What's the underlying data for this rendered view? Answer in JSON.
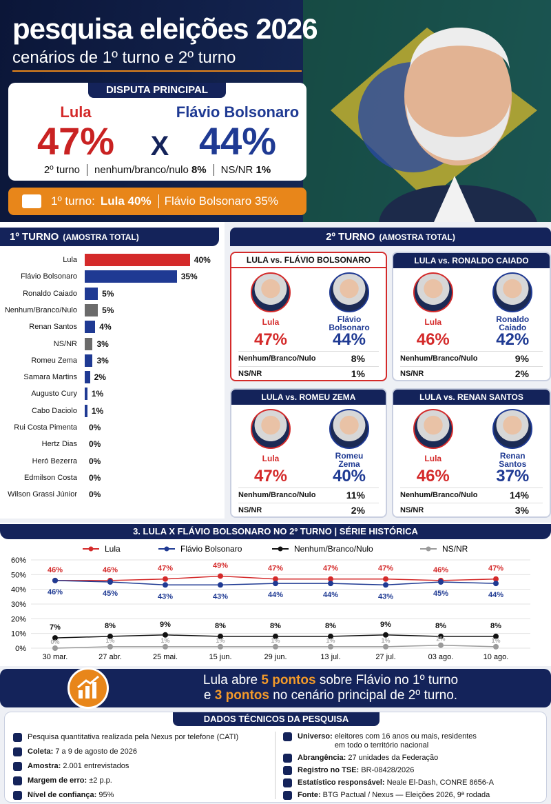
{
  "header": {
    "title": "pesquisa eleições 2026",
    "subtitle": "cenários de 1º turno e 2º turno"
  },
  "main": {
    "label": "DISPUTA PRINCIPAL",
    "left": {
      "name": "Lula",
      "value": "47%"
    },
    "versus": "X",
    "right": {
      "name": "Flávio Bolsonaro",
      "value": "44%"
    },
    "notes": [
      "2º turno",
      {
        "label": "nenhum/branco/nulo",
        "value": "8%"
      },
      {
        "label": "NS/NR",
        "value": "1%"
      }
    ]
  },
  "first_round_banner": {
    "label": "1º turno:",
    "items": [
      "Lula 40%",
      "Flávio Bolsonaro 35%"
    ]
  },
  "chart_data": [
    {
      "type": "bar",
      "orientation": "horizontal",
      "title": "1º TURNO",
      "subtitle": "(AMOSTRA TOTAL)",
      "categories": [
        "Lula",
        "Flávio Bolsonaro",
        "Ronaldo Caiado",
        "Nenhum/Branco/Nulo",
        "Renan Santos",
        "NS/NR",
        "Romeu Zema",
        "Samara Martins",
        "Augusto Cury",
        "Cabo Daciolo",
        "Rui Costa Pimenta",
        "Hertz Dias",
        "Heró Bezerra",
        "Edmilson Costa",
        "Wilson Grassi Júnior"
      ],
      "values": [
        40,
        35,
        5,
        5,
        4,
        3,
        3,
        2,
        1,
        1,
        0,
        0,
        0,
        0,
        0
      ],
      "value_labels": [
        "40%",
        "35%",
        "5%",
        "5%",
        "4%",
        "3%",
        "3%",
        "2%",
        "1%",
        "1%",
        "0%",
        "0%",
        "0%",
        "0%",
        "0%"
      ],
      "colors": [
        "#d42a2a",
        "#1f3a93",
        "#1f3a93",
        "#6b6b6b",
        "#1f3a93",
        "#6b6b6b",
        "#1f3a93",
        "#1f3a93",
        "#1f3a93",
        "#1f3a93",
        "#1f3a93",
        "#1f3a93",
        "#1f3a93",
        "#1f3a93",
        "#1f3a93"
      ]
    },
    {
      "type": "line",
      "title": "3. LULA X FLÁVIO BOLSONARO NO 2º TURNO | SÉRIE HISTÓRICA",
      "categories": [
        "30 mar.",
        "27 abr.",
        "25 mai.",
        "15 jun.",
        "29 jun.",
        "13 jul.",
        "27 jul.",
        "03 ago.",
        "10 ago."
      ],
      "series": [
        {
          "name": "Lula",
          "color": "#d42a2a",
          "values": [
            46,
            46,
            47,
            49,
            47,
            47,
            47,
            46,
            47
          ],
          "value_labels": [
            "46%",
            "46%",
            "47%",
            "49%",
            "47%",
            "47%",
            "47%",
            "46%",
            "47%"
          ]
        },
        {
          "name": "Flávio Bolsonaro",
          "color": "#1f3a93",
          "values": [
            46,
            45,
            43,
            43,
            44,
            44,
            43,
            45,
            44
          ],
          "value_labels": [
            "46%",
            "45%",
            "43%",
            "43%",
            "44%",
            "44%",
            "43%",
            "45%",
            "44%"
          ]
        },
        {
          "name": "Nenhum/Branco/Nulo",
          "color": "#111111",
          "values": [
            7,
            8,
            9,
            8,
            8,
            8,
            9,
            8,
            8
          ],
          "value_labels": [
            "7%",
            "8%",
            "9%",
            "8%",
            "8%",
            "8%",
            "9%",
            "8%",
            "8%"
          ]
        },
        {
          "name": "NS/NR",
          "color": "#9a9a9a",
          "values": [
            0,
            1,
            1,
            1,
            1,
            1,
            1,
            2,
            1
          ],
          "value_labels": [
            "0%",
            "1%",
            "1%",
            "1%",
            "1%",
            "1%",
            "1%",
            "2%",
            "1%"
          ]
        }
      ],
      "ylim": [
        0,
        60
      ],
      "yticks": [
        {
          "value": 0,
          "label": "0%"
        },
        {
          "value": 10,
          "label": "10%"
        },
        {
          "value": 20,
          "label": "20%"
        },
        {
          "value": 30,
          "label": "30%"
        },
        {
          "value": 40,
          "label": "40%"
        },
        {
          "value": 50,
          "label": "50%"
        },
        {
          "value": 60,
          "label": "60%"
        }
      ],
      "grid": true
    }
  ],
  "second_round": {
    "title": "2º TURNO",
    "subtitle": "(AMOSTRA TOTAL)",
    "cards": [
      {
        "title": "LULA vs. FLÁVIO BOLSONARO",
        "left": {
          "name": "Lula",
          "value": "47%"
        },
        "right": {
          "name": "Flávio Bolsonaro",
          "value": "44%"
        },
        "rows": [
          {
            "label": "Nenhum/Branco/Nulo",
            "value": "8%"
          },
          {
            "label": "NS/NR",
            "value": "1%"
          }
        ]
      },
      {
        "title": "LULA vs. RONALDO CAIADO",
        "left": {
          "name": "Lula",
          "value": "46%"
        },
        "right": {
          "name": "Ronaldo Caiado",
          "value": "42%"
        },
        "rows": [
          {
            "label": "Nenhum/Branco/Nulo",
            "value": "9%"
          },
          {
            "label": "NS/NR",
            "value": "2%"
          }
        ]
      },
      {
        "title": "LULA vs. ROMEU ZEMA",
        "left": {
          "name": "Lula",
          "value": "47%"
        },
        "right": {
          "name": "Romeu Zema",
          "value": "40%"
        },
        "rows": [
          {
            "label": "Nenhum/Branco/Nulo",
            "value": "11%"
          },
          {
            "label": "NS/NR",
            "value": "2%"
          }
        ]
      },
      {
        "title": "LULA vs. RENAN SANTOS",
        "left": {
          "name": "Lula",
          "value": "46%"
        },
        "right": {
          "name": "Renan Santos",
          "value": "37%"
        },
        "rows": [
          {
            "label": "Nenhum/Branco/Nulo",
            "value": "14%"
          },
          {
            "label": "NS/NR",
            "value": "3%"
          }
        ]
      }
    ]
  },
  "highlight": {
    "line1": [
      "Lula abre",
      "5 pontos",
      "sobre Flávio no 1º turno"
    ],
    "line2": [
      "e",
      "3 pontos",
      "no cenário principal de 2º turno."
    ]
  },
  "technical": {
    "title": "DADOS TÉCNICOS DA PESQUISA",
    "left": [
      {
        "text": "Pesquisa quantitativa realizada pela Nexus por telefone (CATI)"
      },
      {
        "label": "Coleta:",
        "text": "7 a 9 de agosto de 2026"
      },
      {
        "label": "Amostra:",
        "text": "2.001 entrevistados"
      },
      {
        "label": "Margem de erro:",
        "text": "±2 p.p."
      },
      {
        "label": "Nível de confiança:",
        "text": "95%"
      }
    ],
    "right": [
      {
        "label": "Universo:",
        "text": "eleitores com 16 anos ou mais, residentes em todo o território nacional"
      },
      {
        "label": "Abrangência:",
        "text": "27 unidades da Federação"
      },
      {
        "label": "Registro no TSE:",
        "text": "BR-08428/2026"
      },
      {
        "label": "Estatístico responsável:",
        "text": "Neale El-Dash, CONRE 8656-A"
      },
      {
        "label": "Fonte:",
        "text": "BTG Pactual / Nexus — Eleições 2026, 9ª rodada"
      }
    ]
  }
}
